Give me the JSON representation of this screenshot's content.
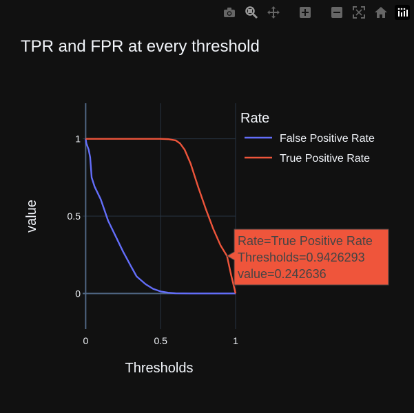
{
  "modebar": {
    "buttons": [
      {
        "name": "camera-icon",
        "color": "#666666"
      },
      {
        "name": "zoom-icon",
        "color": "#999999"
      },
      {
        "name": "pan-icon",
        "color": "#666666"
      },
      {
        "name": "zoom-in-icon",
        "color": "#666666"
      },
      {
        "name": "zoom-out-icon",
        "color": "#666666"
      },
      {
        "name": "autoscale-icon",
        "color": "#666666"
      },
      {
        "name": "home-icon",
        "color": "#666666"
      },
      {
        "name": "plotly-logo-icon",
        "color": "#ffffff"
      }
    ]
  },
  "chart_data": {
    "type": "line",
    "title": "TPR and FPR at every threshold",
    "xlabel": "Thresholds",
    "ylabel": "value",
    "xlim": [
      -0.02,
      1.0
    ],
    "ylim": [
      -0.23,
      1.23
    ],
    "xticks": [
      0,
      0.5,
      1
    ],
    "xtick_labels": [
      "0",
      "0.5",
      "1"
    ],
    "yticks": [
      0,
      0.5,
      1
    ],
    "ytick_labels": [
      "0",
      "0.5",
      "1"
    ],
    "grid": true,
    "legend": {
      "title": "Rate",
      "placement": "top-right-outside"
    },
    "series": [
      {
        "name": "False Positive Rate",
        "color": "#636efa",
        "x": [
          0,
          0.005,
          0.02,
          0.03,
          0.04,
          0.06,
          0.1,
          0.15,
          0.2,
          0.25,
          0.3,
          0.34,
          0.4,
          0.45,
          0.5,
          0.55,
          0.6,
          0.7,
          0.8,
          0.9,
          1.0
        ],
        "y": [
          1.0,
          0.97,
          0.93,
          0.88,
          0.75,
          0.69,
          0.61,
          0.47,
          0.37,
          0.27,
          0.18,
          0.11,
          0.06,
          0.03,
          0.013,
          0.005,
          0.001,
          0.0,
          0.0,
          0.0,
          0.0
        ]
      },
      {
        "name": "True Positive Rate",
        "color": "#ef553b",
        "x": [
          0,
          0.1,
          0.2,
          0.3,
          0.4,
          0.5,
          0.55,
          0.6,
          0.63,
          0.66,
          0.7,
          0.75,
          0.8,
          0.85,
          0.9,
          0.9426293,
          0.97,
          1.0
        ],
        "y": [
          1.0,
          1.0,
          1.0,
          1.0,
          1.0,
          1.0,
          0.998,
          0.99,
          0.97,
          0.93,
          0.84,
          0.69,
          0.55,
          0.42,
          0.31,
          0.242636,
          0.12,
          0.0
        ]
      }
    ],
    "hover": {
      "series_index": 1,
      "x": 0.9426293,
      "y": 0.242636,
      "bg_color": "#ef553b",
      "lines": [
        "Rate=True Positive Rate",
        "Thresholds=0.9426293",
        "value=0.242636"
      ]
    }
  }
}
